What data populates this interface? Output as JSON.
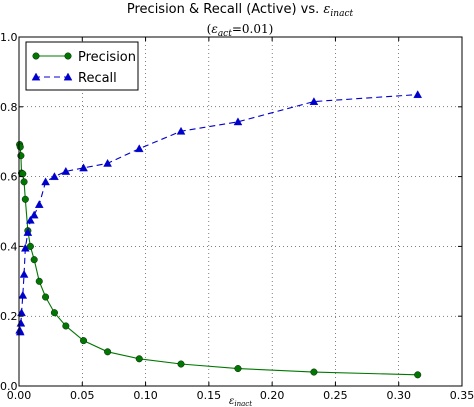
{
  "chart_data": {
    "type": "line",
    "title": "Precision & Recall (Active) vs. ε_inact",
    "title_main": "Precision & Recall (Active) vs. ",
    "title_symbol": "ε",
    "title_symbol_sub": "inact",
    "subtitle_open": "(",
    "subtitle_symbol": "ε",
    "subtitle_sub": "act",
    "subtitle_rest": "=0.01)",
    "xlabel_symbol": "ε",
    "xlabel_sub": "inact",
    "ylabel": "",
    "xlim": [
      0.0,
      0.35
    ],
    "ylim": [
      0.0,
      1.0
    ],
    "x_ticks": [
      "0.00",
      "0.05",
      "0.10",
      "0.15",
      "0.20",
      "0.25",
      "0.30",
      "0.35"
    ],
    "y_ticks": [
      "0.0",
      "0.2",
      "0.4",
      "0.6",
      "0.8",
      "1.0"
    ],
    "grid": true,
    "legend_position": "top-left",
    "series": [
      {
        "name": "Precision",
        "color": "#007700",
        "marker": "circle",
        "line_style": "solid",
        "x": [
          0.0005,
          0.001,
          0.0015,
          0.002,
          0.003,
          0.004,
          0.005,
          0.007,
          0.009,
          0.012,
          0.016,
          0.021,
          0.028,
          0.037,
          0.051,
          0.07,
          0.095,
          0.128,
          0.173,
          0.233,
          0.315
        ],
        "y": [
          0.692,
          0.685,
          0.66,
          0.61,
          0.608,
          0.585,
          0.535,
          0.445,
          0.4,
          0.362,
          0.3,
          0.255,
          0.21,
          0.172,
          0.13,
          0.098,
          0.078,
          0.063,
          0.05,
          0.04,
          0.032
        ]
      },
      {
        "name": "Recall",
        "color": "#0000cc",
        "marker": "triangle",
        "line_style": "dashed",
        "x": [
          0.0005,
          0.001,
          0.0015,
          0.002,
          0.003,
          0.004,
          0.005,
          0.007,
          0.009,
          0.012,
          0.016,
          0.021,
          0.028,
          0.037,
          0.051,
          0.07,
          0.095,
          0.128,
          0.173,
          0.233,
          0.315
        ],
        "y": [
          0.16,
          0.155,
          0.18,
          0.21,
          0.26,
          0.32,
          0.395,
          0.44,
          0.475,
          0.49,
          0.52,
          0.585,
          0.6,
          0.615,
          0.625,
          0.638,
          0.68,
          0.73,
          0.757,
          0.815,
          0.835
        ]
      }
    ]
  }
}
